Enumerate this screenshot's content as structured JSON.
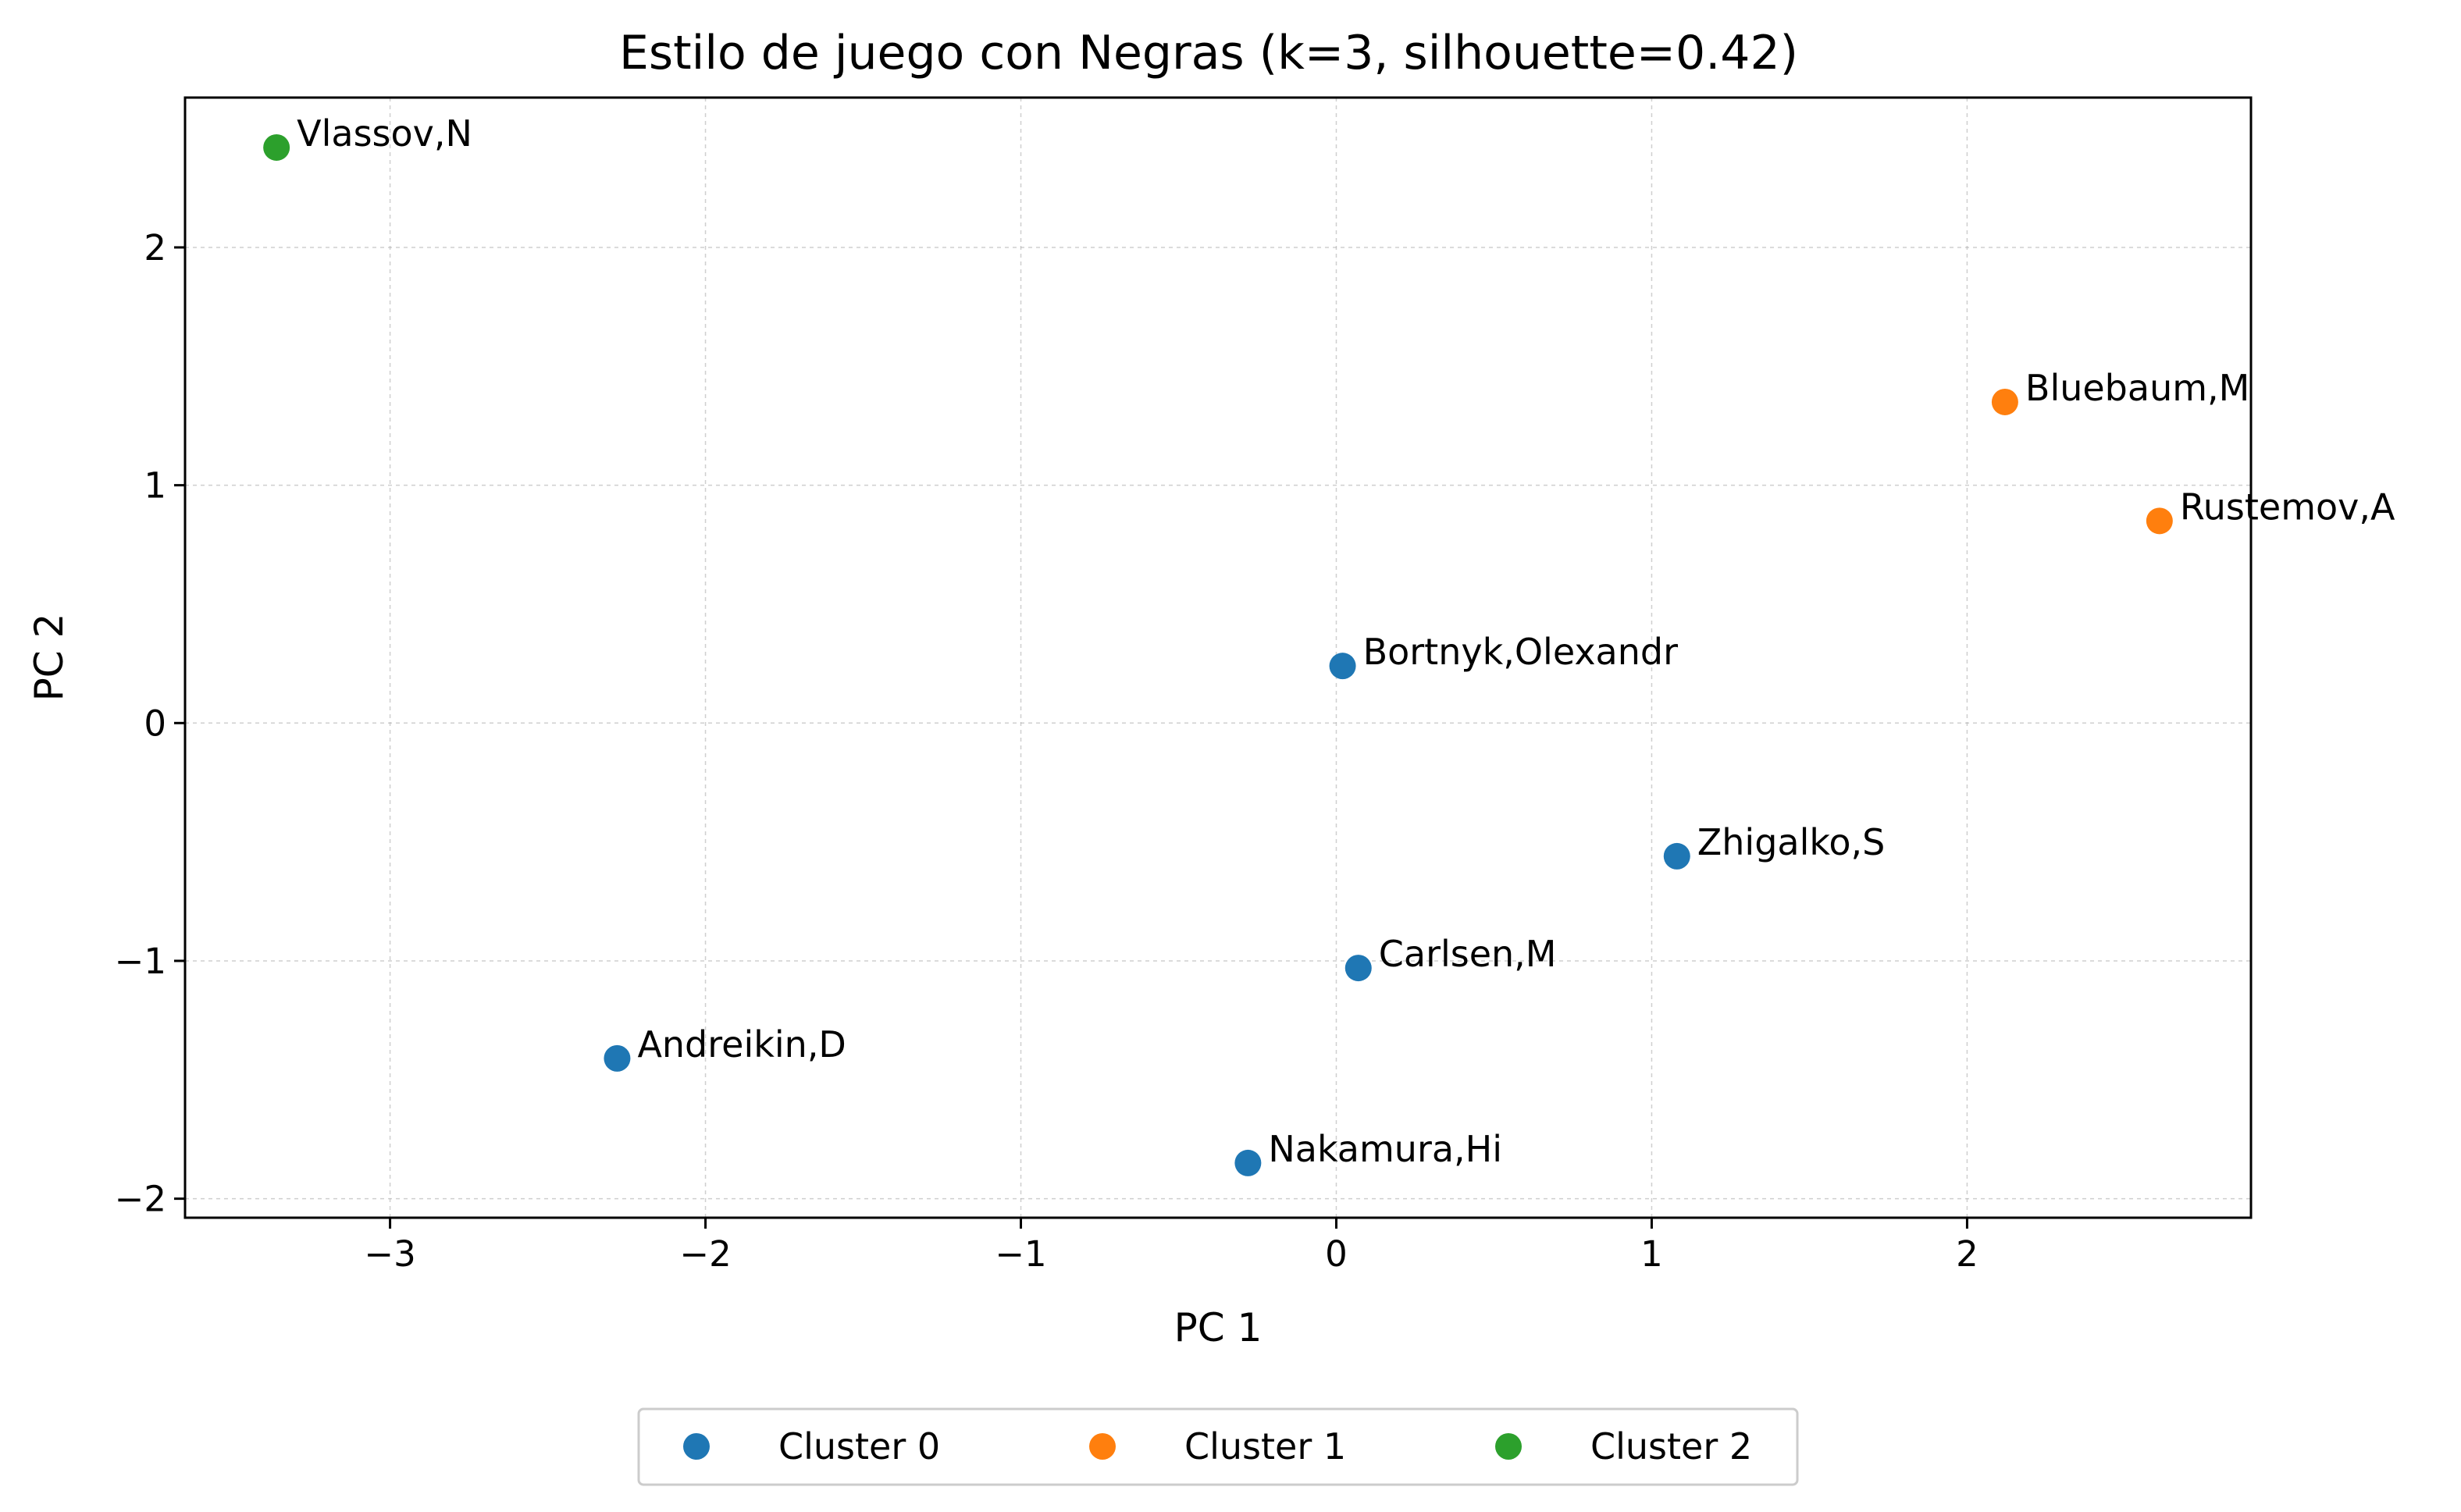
{
  "chart_data": {
    "type": "scatter",
    "title": "Estilo de juego con Negras (k=3, silhouette=0.42)",
    "xlabel": "PC 1",
    "ylabel": "PC 2",
    "xlim": [
      -3.65,
      2.9
    ],
    "ylim": [
      -2.08,
      2.63
    ],
    "xticks": [
      -3,
      -2,
      -1,
      0,
      1,
      2
    ],
    "yticks": [
      -2,
      -1,
      0,
      1,
      2
    ],
    "xtick_labels": [
      "−3",
      "−2",
      "−1",
      "0",
      "1",
      "2"
    ],
    "ytick_labels": [
      "−2",
      "−1",
      "0",
      "1",
      "2"
    ],
    "grid": true,
    "legend_position": "bottom-center, outside",
    "series": [
      {
        "name": "Cluster 0",
        "color": "#1f77b4",
        "points": [
          {
            "label": "Bortnyk,Olexandr",
            "x": 0.02,
            "y": 0.24
          },
          {
            "label": "Zhigalko,S",
            "x": 1.08,
            "y": -0.56
          },
          {
            "label": "Carlsen,M",
            "x": 0.07,
            "y": -1.03
          },
          {
            "label": "Andreikin,D",
            "x": -2.28,
            "y": -1.41
          },
          {
            "label": "Nakamura,Hi",
            "x": -0.28,
            "y": -1.85
          }
        ]
      },
      {
        "name": "Cluster 1",
        "color": "#ff7f0e",
        "points": [
          {
            "label": "Bluebaum,M",
            "x": 2.12,
            "y": 1.35
          },
          {
            "label": "Rustemov,A",
            "x": 2.61,
            "y": 0.85
          }
        ]
      },
      {
        "name": "Cluster 2",
        "color": "#2ca02c",
        "points": [
          {
            "label": "Vlassov,N",
            "x": -3.36,
            "y": 2.42
          }
        ]
      }
    ]
  }
}
